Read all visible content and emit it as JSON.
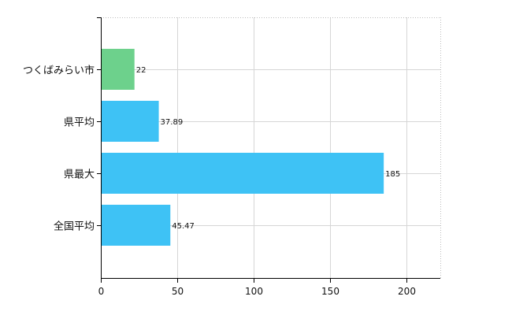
{
  "chart_data": {
    "type": "bar",
    "orientation": "horizontal",
    "title": "",
    "xlabel": "",
    "ylabel": "",
    "categories": [
      "つくばみらい市",
      "県平均",
      "県最大",
      "全国平均"
    ],
    "values": [
      22,
      37.89,
      185,
      45.47
    ],
    "value_labels": [
      "22",
      "37.89",
      "185",
      "45.47"
    ],
    "bar_colors": [
      "#6dd18c",
      "#3ec2f5",
      "#3ec2f5",
      "#3ec2f5"
    ],
    "xlim": [
      0,
      222
    ],
    "x_ticks": [
      0,
      50,
      100,
      150,
      200
    ],
    "x_tick_labels": [
      "0",
      "50",
      "100",
      "150",
      "200"
    ],
    "grid": true,
    "legend": "none"
  }
}
